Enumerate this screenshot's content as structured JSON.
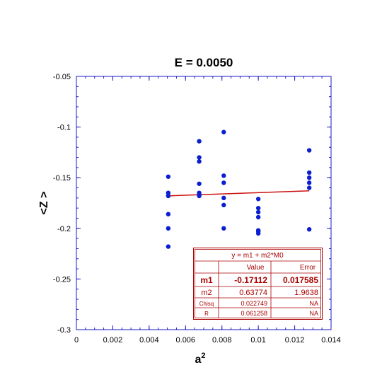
{
  "chart_data": {
    "type": "scatter",
    "title": "E = 0.0050",
    "xlabel": "a",
    "xlabel_superscript": "2",
    "ylabel": "<Z >",
    "xlim": [
      0,
      0.014
    ],
    "ylim": [
      -0.3,
      -0.05
    ],
    "x_ticks": [
      "0",
      "0.002",
      "0.004",
      "0.006",
      "0.008",
      "0.01",
      "0.012",
      "0.014"
    ],
    "y_ticks": [
      "-0.05",
      "-0.1",
      "-0.15",
      "-0.2",
      "-0.25",
      "-0.3"
    ],
    "grid": false,
    "colors": {
      "points": "#0b1fd0",
      "fit": "#cc1111",
      "axes": "#1a1ac8",
      "text": "#000000",
      "fit_text": "#aa0000"
    },
    "series": [
      {
        "values_xy": [
          [
            0.00505,
            -0.149
          ],
          [
            0.00505,
            -0.165
          ],
          [
            0.00505,
            -0.168
          ],
          [
            0.00505,
            -0.186
          ],
          [
            0.00505,
            -0.2
          ],
          [
            0.00505,
            -0.218
          ],
          [
            0.00675,
            -0.114
          ],
          [
            0.00675,
            -0.13
          ],
          [
            0.00675,
            -0.134
          ],
          [
            0.00675,
            -0.156
          ],
          [
            0.00675,
            -0.165
          ],
          [
            0.00675,
            -0.167
          ],
          [
            0.00675,
            -0.168
          ],
          [
            0.0081,
            -0.105
          ],
          [
            0.0081,
            -0.148
          ],
          [
            0.0081,
            -0.155
          ],
          [
            0.0081,
            -0.17
          ],
          [
            0.0081,
            -0.177
          ],
          [
            0.0081,
            -0.2
          ],
          [
            0.01,
            -0.171
          ],
          [
            0.01,
            -0.18
          ],
          [
            0.01,
            -0.184
          ],
          [
            0.01,
            -0.189
          ],
          [
            0.01,
            -0.202
          ],
          [
            0.01,
            -0.203
          ],
          [
            0.01,
            -0.205
          ],
          [
            0.0128,
            -0.123
          ],
          [
            0.0128,
            -0.145
          ],
          [
            0.0128,
            -0.15
          ],
          [
            0.0128,
            -0.155
          ],
          [
            0.0128,
            -0.16
          ],
          [
            0.0128,
            -0.201
          ]
        ]
      }
    ],
    "fit_line": {
      "m1": -0.17112,
      "m2": 0.63774,
      "x_range": [
        0.00505,
        0.0128
      ]
    },
    "fit_table": {
      "equation": "y = m1 + m2*M0",
      "col_value": "Value",
      "col_error": "Error",
      "rows": [
        {
          "name": "m1",
          "value": "-0.17112",
          "error": "0.017585"
        },
        {
          "name": "m2",
          "value": "0.63774",
          "error": "1.9638"
        },
        {
          "name": "Chisq",
          "value": "0.022749",
          "error": "NA"
        },
        {
          "name": "R",
          "value": "0.061258",
          "error": "NA"
        }
      ]
    }
  }
}
